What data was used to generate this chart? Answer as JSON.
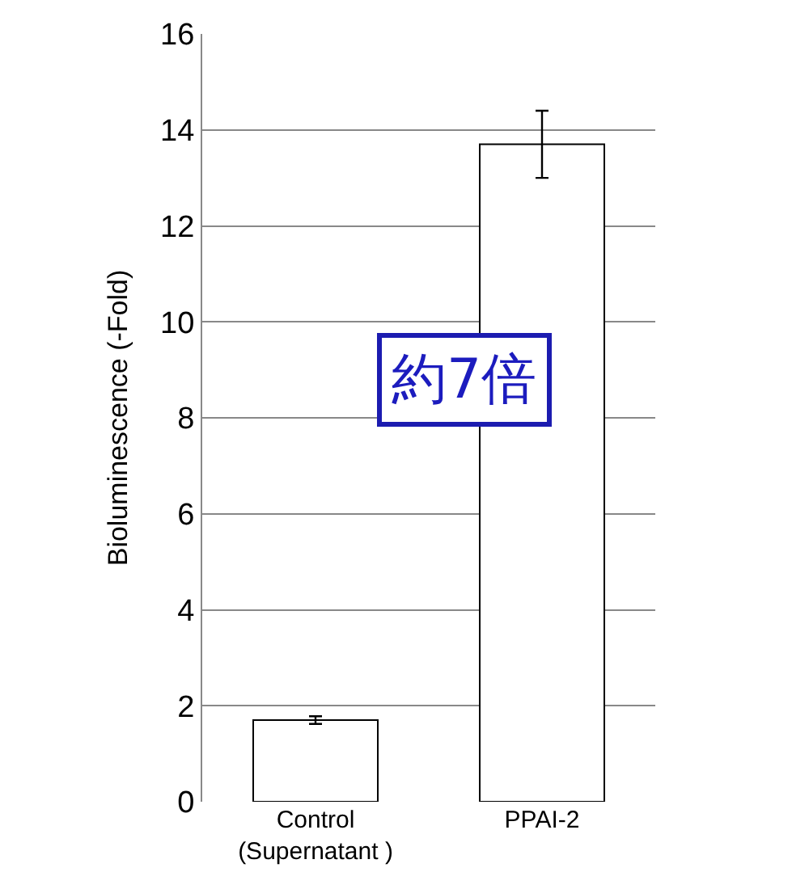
{
  "chart_data": {
    "type": "bar",
    "ylabel": "Bioluminescence (-Fold)",
    "categories": [
      "Control\n(Supernatant )",
      "PPAI-2"
    ],
    "values": [
      1.7,
      13.7
    ],
    "errors": [
      0.08,
      0.7
    ],
    "color": "#ffffff",
    "ylim": [
      0,
      16
    ],
    "yticks": [
      0,
      2,
      4,
      6,
      8,
      10,
      12,
      14,
      16
    ],
    "grid": "y",
    "annotations": [
      "約7倍"
    ]
  }
}
